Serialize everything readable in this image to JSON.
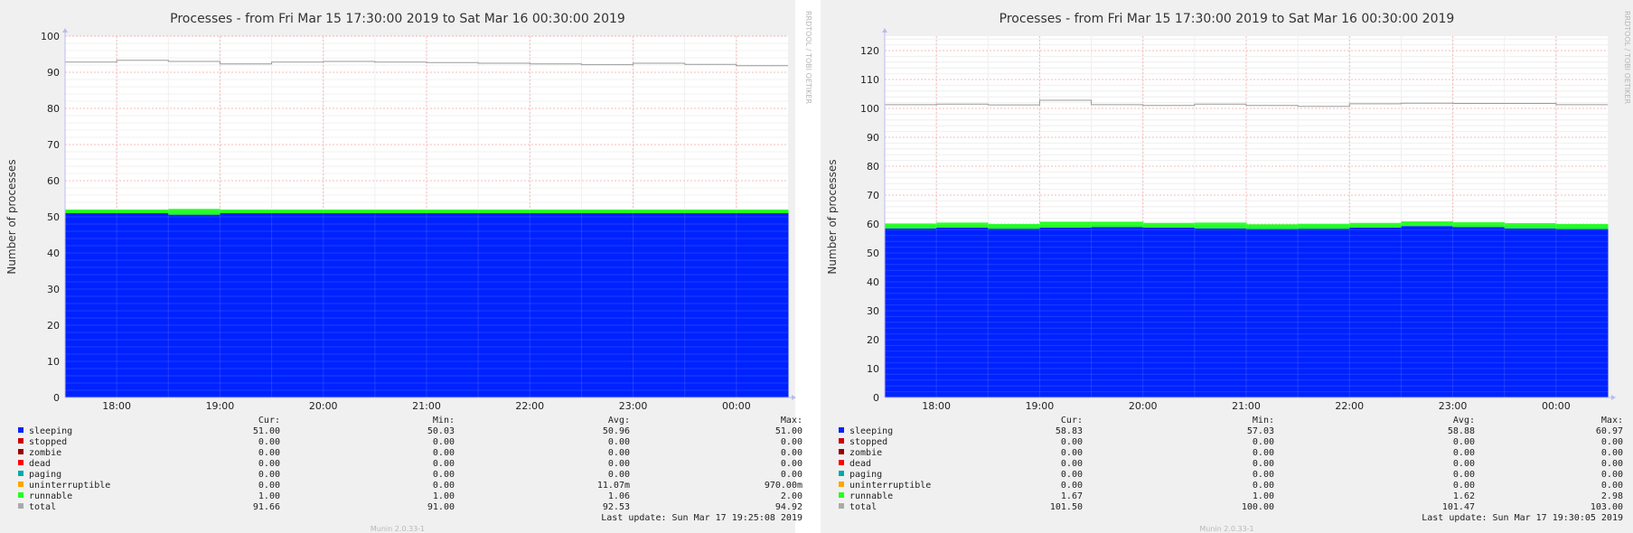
{
  "side_text": "RRDTOOL / TOBI OETIKER",
  "footer_text": "Munin 2.0.33-1",
  "legend_headers": [
    "Cur:",
    "Min:",
    "Avg:",
    "Max:"
  ],
  "colors": {
    "sleeping": "#0022ff",
    "stopped": "#cc0000",
    "zombie": "#990000",
    "dead": "#ff0000",
    "paging": "#00aaaa",
    "uninterruptible": "#ffa500",
    "runnable": "#22ff22",
    "total": "#aaaaaa"
  },
  "chart_data": [
    {
      "type": "area",
      "title": "Processes - from Fri Mar 15 17:30:00 2019 to Sat Mar 16 00:30:00 2019",
      "ylabel": "Number of processes",
      "xlabel": "",
      "ylim": [
        0,
        100
      ],
      "yticks": [
        0,
        10,
        20,
        30,
        40,
        50,
        60,
        70,
        80,
        90,
        100
      ],
      "xlim": [
        "17:30",
        "00:30"
      ],
      "xticks": [
        "18:00",
        "19:00",
        "20:00",
        "21:00",
        "22:00",
        "23:00",
        "00:00"
      ],
      "grid": true,
      "x": [
        "17:30",
        "18:00",
        "18:30",
        "19:00",
        "19:30",
        "20:00",
        "20:30",
        "21:00",
        "21:30",
        "22:00",
        "22:30",
        "23:00",
        "23:30",
        "00:00"
      ],
      "series": [
        {
          "name": "sleeping",
          "values": [
            51.0,
            51.0,
            50.6,
            51.0,
            51.0,
            51.0,
            51.0,
            51.0,
            51.0,
            51.0,
            51.0,
            51.0,
            51.0,
            51.0
          ]
        },
        {
          "name": "runnable",
          "values": [
            1.0,
            1.0,
            1.6,
            1.0,
            1.0,
            1.0,
            1.0,
            1.0,
            1.0,
            1.0,
            1.0,
            1.0,
            1.0,
            1.0
          ]
        },
        {
          "name": "total",
          "values": [
            92.8,
            93.3,
            93.0,
            92.3,
            92.8,
            93.0,
            92.8,
            92.7,
            92.5,
            92.3,
            92.1,
            92.5,
            92.2,
            91.8
          ]
        }
      ],
      "legend": [
        {
          "name": "sleeping",
          "cur": "51.00",
          "min": "50.03",
          "avg": "50.96",
          "max": "51.00"
        },
        {
          "name": "stopped",
          "cur": "0.00",
          "min": "0.00",
          "avg": "0.00",
          "max": "0.00"
        },
        {
          "name": "zombie",
          "cur": "0.00",
          "min": "0.00",
          "avg": "0.00",
          "max": "0.00"
        },
        {
          "name": "dead",
          "cur": "0.00",
          "min": "0.00",
          "avg": "0.00",
          "max": "0.00"
        },
        {
          "name": "paging",
          "cur": "0.00",
          "min": "0.00",
          "avg": "0.00",
          "max": "0.00"
        },
        {
          "name": "uninterruptible",
          "cur": "0.00",
          "min": "0.00",
          "avg": "11.07m",
          "max": "970.00m"
        },
        {
          "name": "runnable",
          "cur": "1.00",
          "min": "1.00",
          "avg": "1.06",
          "max": "2.00"
        },
        {
          "name": "total",
          "cur": "91.66",
          "min": "91.00",
          "avg": "92.53",
          "max": "94.92"
        }
      ],
      "last_update": "Last update: Sun Mar 17 19:25:08 2019"
    },
    {
      "type": "area",
      "title": "Processes - from Fri Mar 15 17:30:00 2019 to Sat Mar 16 00:30:00 2019",
      "ylabel": "Number of processes",
      "xlabel": "",
      "ylim": [
        0,
        125
      ],
      "yticks": [
        0,
        10,
        20,
        30,
        40,
        50,
        60,
        70,
        80,
        90,
        100,
        110,
        120
      ],
      "xlim": [
        "17:30",
        "00:30"
      ],
      "xticks": [
        "18:00",
        "19:00",
        "20:00",
        "21:00",
        "22:00",
        "23:00",
        "00:00"
      ],
      "grid": true,
      "x": [
        "17:30",
        "18:00",
        "18:30",
        "19:00",
        "19:30",
        "20:00",
        "20:30",
        "21:00",
        "21:30",
        "22:00",
        "22:30",
        "23:00",
        "23:30",
        "00:00"
      ],
      "series": [
        {
          "name": "sleeping",
          "values": [
            58.5,
            58.8,
            58.4,
            58.8,
            59.0,
            58.8,
            58.5,
            58.3,
            58.4,
            58.8,
            59.3,
            59.0,
            58.5,
            58.3
          ]
        },
        {
          "name": "runnable",
          "values": [
            1.7,
            1.7,
            1.6,
            2.0,
            1.8,
            1.6,
            2.0,
            1.6,
            1.7,
            1.6,
            1.6,
            1.6,
            1.8,
            1.7
          ]
        },
        {
          "name": "total",
          "values": [
            101.3,
            101.5,
            101.2,
            102.8,
            101.3,
            101.0,
            101.5,
            101.0,
            100.7,
            101.6,
            101.8,
            101.7,
            101.7,
            101.3
          ]
        }
      ],
      "legend": [
        {
          "name": "sleeping",
          "cur": "58.83",
          "min": "57.03",
          "avg": "58.88",
          "max": "60.97"
        },
        {
          "name": "stopped",
          "cur": "0.00",
          "min": "0.00",
          "avg": "0.00",
          "max": "0.00"
        },
        {
          "name": "zombie",
          "cur": "0.00",
          "min": "0.00",
          "avg": "0.00",
          "max": "0.00"
        },
        {
          "name": "dead",
          "cur": "0.00",
          "min": "0.00",
          "avg": "0.00",
          "max": "0.00"
        },
        {
          "name": "paging",
          "cur": "0.00",
          "min": "0.00",
          "avg": "0.00",
          "max": "0.00"
        },
        {
          "name": "uninterruptible",
          "cur": "0.00",
          "min": "0.00",
          "avg": "0.00",
          "max": "0.00"
        },
        {
          "name": "runnable",
          "cur": "1.67",
          "min": "1.00",
          "avg": "1.62",
          "max": "2.98"
        },
        {
          "name": "total",
          "cur": "101.50",
          "min": "100.00",
          "avg": "101.47",
          "max": "103.00"
        }
      ],
      "last_update": "Last update: Sun Mar 17 19:30:05 2019"
    }
  ]
}
